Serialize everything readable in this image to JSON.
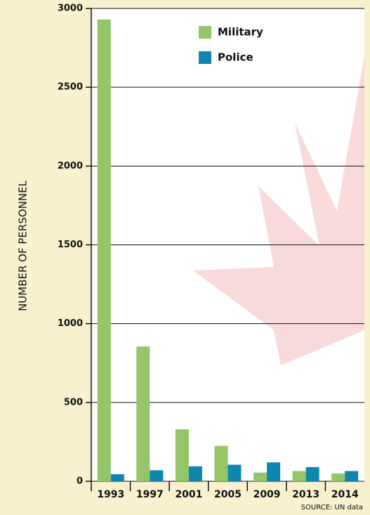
{
  "chart_data": {
    "type": "bar",
    "y_label": "NUMBER OF PERSONNEL",
    "source": "SOURCE: UN data",
    "categories": [
      "1993",
      "1997",
      "2001",
      "2005",
      "2009",
      "2013",
      "2014"
    ],
    "series": [
      {
        "name": "Military",
        "color": "#93c569",
        "values": [
          2930,
          855,
          330,
          225,
          55,
          65,
          50
        ]
      },
      {
        "name": "Police",
        "color": "#0f86b0",
        "values": [
          45,
          70,
          95,
          105,
          120,
          90,
          65
        ]
      }
    ],
    "ylim": [
      0,
      3000
    ],
    "yticks": [
      0,
      500,
      1000,
      1500,
      2000,
      2500,
      3000
    ],
    "grid": true
  }
}
